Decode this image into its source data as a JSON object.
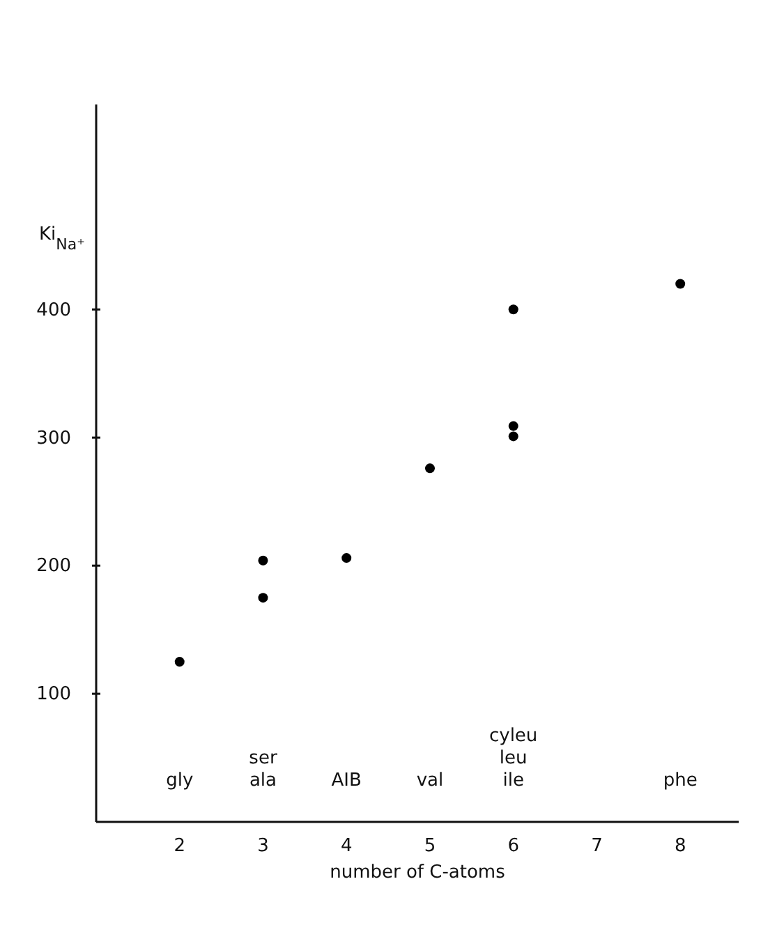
{
  "chart_data": {
    "type": "scatter",
    "xlabel": "number of C-atoms",
    "ylabel": "Ki$_{Na⁺}$",
    "x": [
      2,
      3,
      3,
      4,
      5,
      6,
      6,
      6,
      8
    ],
    "values": [
      125,
      204,
      175,
      206,
      276,
      400,
      309,
      301,
      420
    ],
    "color": "#000000",
    "marker": "circle",
    "grid": false,
    "xlim": [
      1,
      8.7
    ],
    "xticks": [
      2,
      3,
      4,
      5,
      6,
      7,
      8
    ],
    "ylim": [
      0,
      560
    ],
    "yticks": [
      100,
      200,
      300,
      400
    ],
    "annotations": [
      "gly",
      "ser\nala",
      "AIB",
      "val",
      "cyleu\nleu\nile",
      "phe"
    ]
  }
}
